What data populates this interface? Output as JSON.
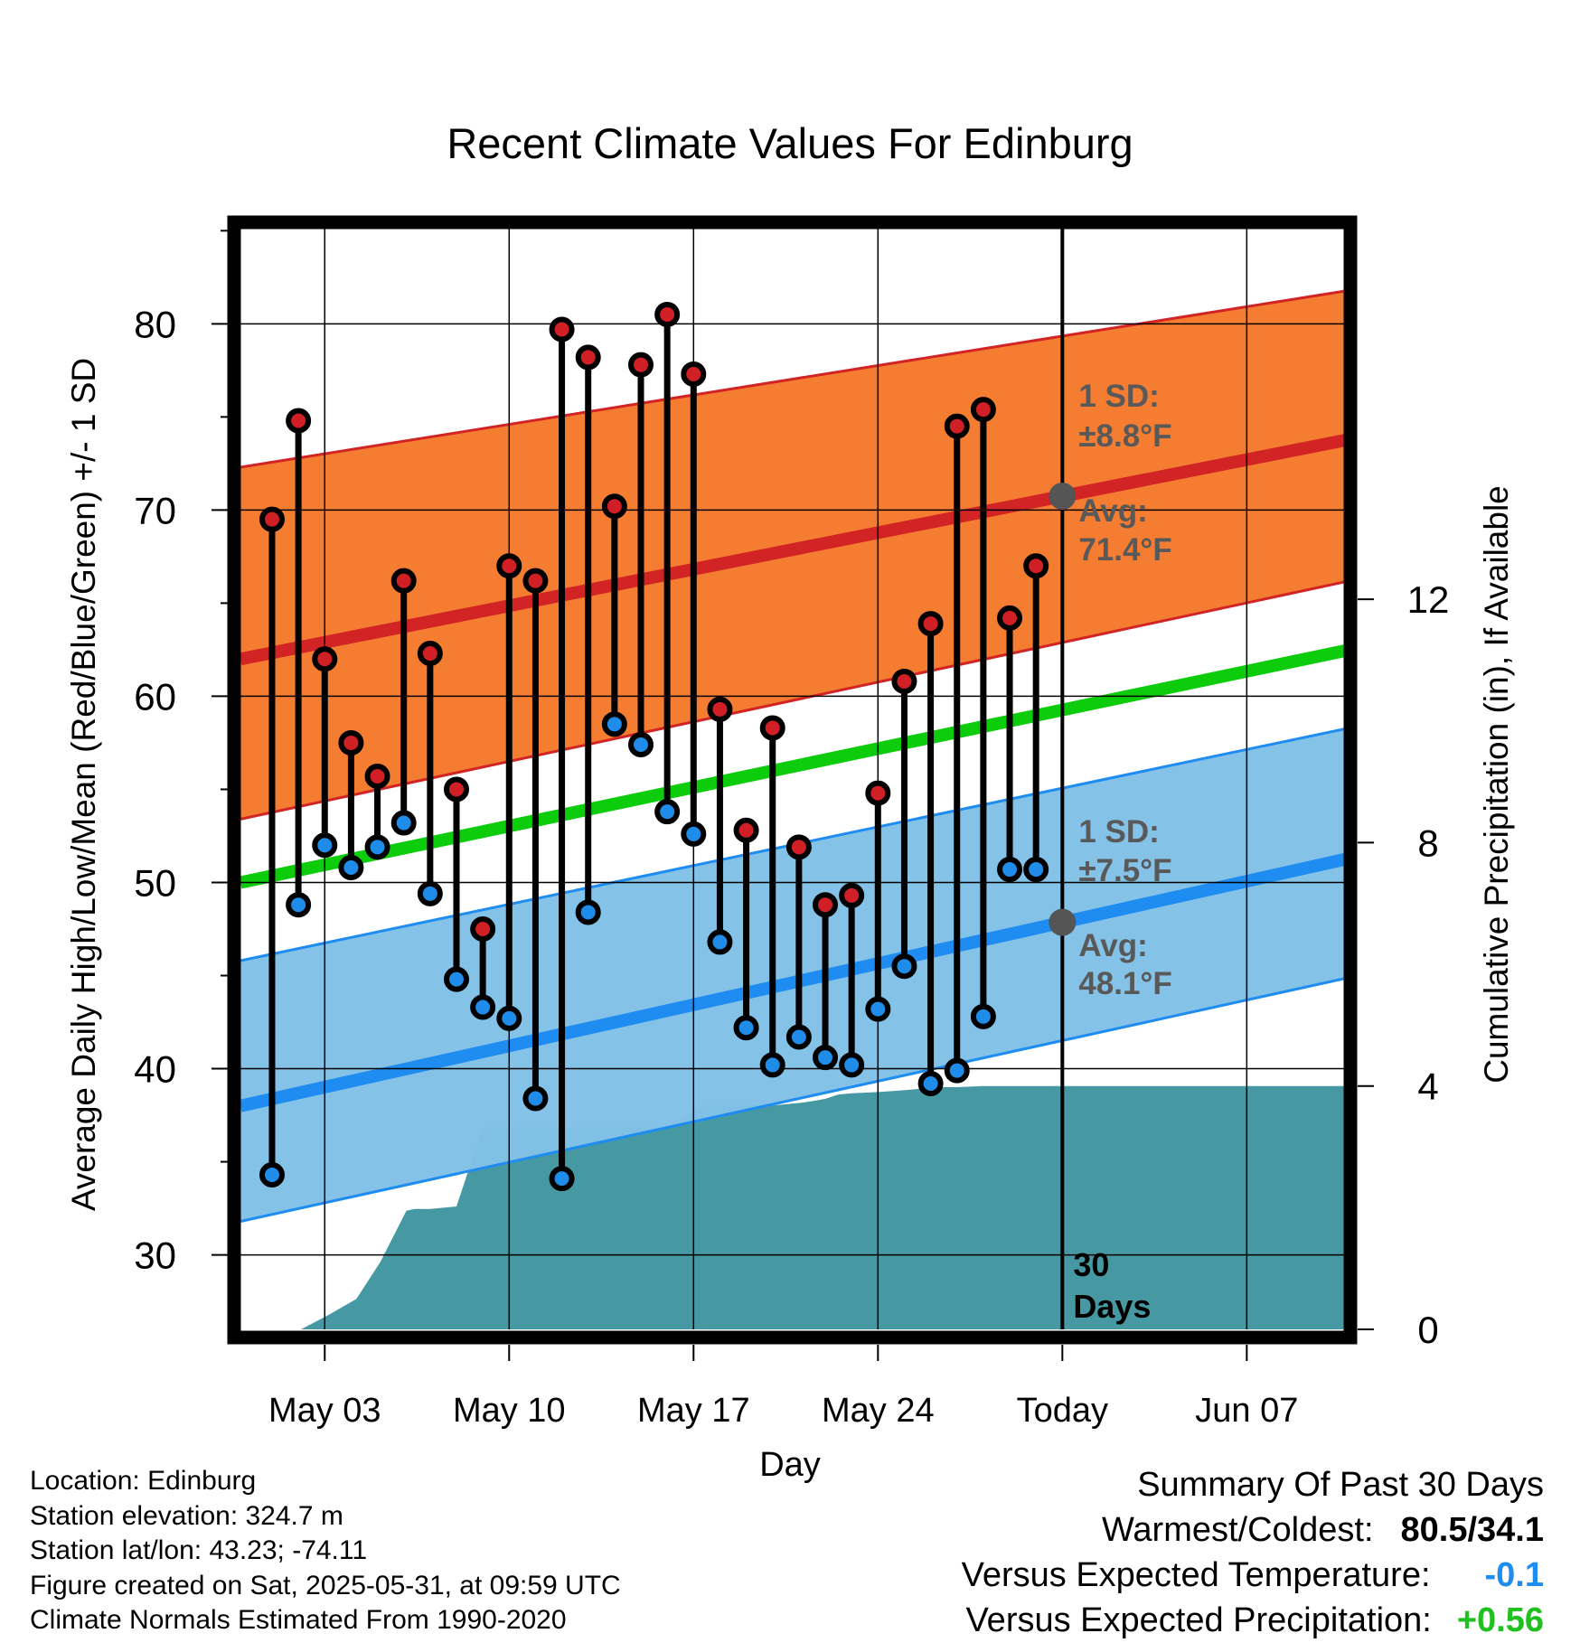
{
  "chart_data": {
    "type": "line",
    "title": "Recent Climate Values For Edinburg",
    "xlabel": "Day",
    "ylabel": "Average Daily High/Low/Mean (Red/Blue/Green) +/- 1 SD",
    "y2label": "Cumulative Precipitation (in), If Available",
    "x_tick_labels": [
      "May 03",
      "May 10",
      "May 17",
      "May 24",
      "Today",
      "Jun 07"
    ],
    "x_tick_days": [
      3,
      10,
      17,
      24,
      31,
      38
    ],
    "xlim_days": [
      -0.2,
      41.9
    ],
    "ylim": [
      26.0,
      85.5
    ],
    "y_ticks": [
      30,
      40,
      50,
      60,
      70,
      80
    ],
    "y2lim": [
      0,
      18.21
    ],
    "y2_ticks": [
      0,
      4,
      8,
      12
    ],
    "grid": true,
    "today_day": 31,
    "today_text": "30 Days",
    "normal_high": {
      "day": [
        -0.2,
        41.9
      ],
      "value": [
        62.0,
        73.8
      ]
    },
    "normal_high_band": {
      "upper": [
        72.3,
        81.8
      ],
      "lower": [
        53.4,
        66.2
      ]
    },
    "normal_low": {
      "day": [
        -0.2,
        41.9
      ],
      "value": [
        38.0,
        51.3
      ]
    },
    "normal_low_band": {
      "upper": [
        45.8,
        58.3
      ],
      "lower": [
        31.8,
        44.9
      ]
    },
    "normal_mean": {
      "day": [
        -0.2,
        41.9
      ],
      "value": [
        50.0,
        62.5
      ]
    },
    "daily": {
      "day": [
        1,
        2,
        3,
        4,
        5,
        6,
        7,
        8,
        9,
        10,
        11,
        12,
        13,
        14,
        15,
        16,
        17,
        18,
        19,
        20,
        21,
        22,
        23,
        24,
        25,
        26,
        27,
        28,
        29,
        30
      ],
      "high": [
        69.5,
        74.8,
        62.0,
        57.5,
        55.7,
        66.2,
        62.3,
        55.0,
        47.5,
        67.0,
        66.2,
        79.7,
        78.2,
        70.2,
        77.8,
        80.5,
        77.3,
        59.3,
        52.8,
        58.3,
        51.9,
        48.8,
        49.3,
        54.8,
        60.8,
        63.9,
        74.5,
        75.4,
        64.2,
        67.0
      ],
      "low": [
        34.3,
        48.8,
        52.0,
        50.8,
        51.9,
        53.2,
        49.4,
        44.8,
        43.3,
        42.7,
        38.4,
        34.1,
        48.4,
        58.5,
        57.4,
        53.8,
        52.6,
        46.8,
        42.2,
        40.2,
        41.7,
        40.6,
        40.2,
        43.2,
        45.5,
        39.2,
        39.9,
        42.8,
        50.7,
        50.7
      ]
    },
    "cumulative_precip": {
      "day": [
        1,
        2.1,
        3.2,
        4.2,
        5.1,
        6.1,
        6.4,
        7,
        8,
        9,
        10,
        11,
        12,
        13,
        14,
        15,
        16,
        16.8,
        17.3,
        18,
        19,
        20,
        21,
        21.5,
        22,
        22.5,
        23,
        24,
        25,
        26,
        26.5,
        27,
        28,
        29,
        30,
        31,
        41.9
      ],
      "value": [
        0,
        0,
        0.25,
        0.5,
        1.1,
        1.95,
        1.98,
        1.98,
        2.02,
        3.32,
        3.32,
        3.32,
        3.32,
        3.32,
        3.32,
        3.32,
        3.32,
        3.55,
        3.68,
        3.68,
        3.68,
        3.68,
        3.72,
        3.75,
        3.79,
        3.86,
        3.88,
        3.9,
        3.93,
        3.97,
        3.98,
        3.98,
        4.0,
        4.0,
        4.0,
        4.0,
        4.0
      ]
    },
    "annotations": {
      "high_sd_label": "1 SD:",
      "high_sd_value": "±8.8°F",
      "high_avg_label": "Avg:",
      "high_avg_value": "71.4°F",
      "low_sd_label": "1 SD:",
      "low_sd_value": "±7.5°F",
      "low_avg_label": "Avg:",
      "low_avg_value": "48.1°F"
    },
    "colors": {
      "high_band": "#f47a2e",
      "high_line": "#d22424",
      "low_band": "#82c1e7",
      "low_line": "#1e8cf0",
      "mean_line": "#0ccc0c",
      "precip": "#4699a3",
      "high_dot": "#d11f26",
      "low_dot": "#1e8ce8",
      "annotation": "#595959"
    }
  },
  "footer": {
    "location": "Location: Edinburg",
    "elevation": "Station elevation: 324.7 m",
    "latlon": "Station lat/lon: 43.23; -74.11",
    "created": "Figure created on Sat, 2025-05-31, at 09:59 UTC",
    "normals": "Climate Normals Estimated From 1990-2020"
  },
  "summary": {
    "title": "Summary Of Past 30 Days",
    "warm_cold_label": "Warmest/Coldest:",
    "warm_cold_value": "80.5/34.1",
    "temp_label": "Versus Expected Temperature:",
    "temp_value": "-0.1",
    "temp_color": "#1e8cf0",
    "precip_label": "Versus Expected Precipitation:",
    "precip_value": "+0.56",
    "precip_color": "#20c020"
  }
}
